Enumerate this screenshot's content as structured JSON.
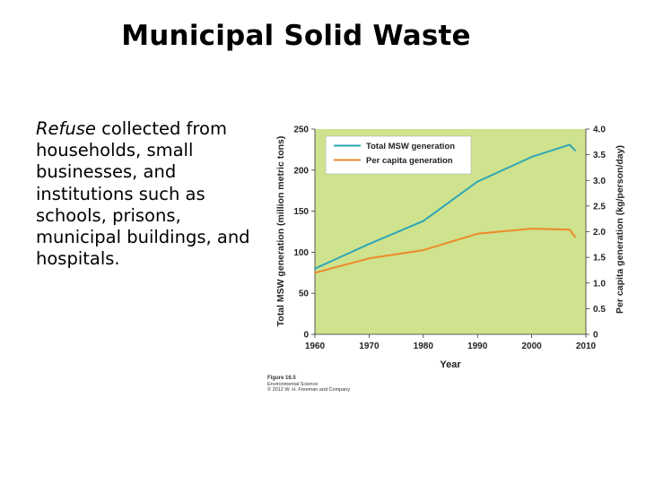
{
  "slide": {
    "title": "Municipal Solid Waste",
    "body_em": "Refuse",
    "body_rest": " collected from households, small businesses, and institutions such as schools, prisons, municipal buildings, and hospitals."
  },
  "caption": {
    "figure": "Figure 16.5",
    "book": "Environmental Science",
    "copyright": "© 2012 W. H. Freeman and Company"
  },
  "colors": {
    "plot_bg": "#cfe28e",
    "total_line": "#2ea6b6",
    "per_capita_line": "#ef8a2a"
  },
  "chart_data": {
    "type": "line",
    "title": "",
    "xlabel": "Year",
    "ylabel": "Total MSW generation (million metric tons)",
    "y2label": "Per capita generation (kg/person/day)",
    "xlim": [
      1960,
      2010
    ],
    "ylim": [
      0,
      250
    ],
    "y2lim": [
      0,
      4.0
    ],
    "x_ticks": [
      "1960",
      "1970",
      "1980",
      "1990",
      "2000",
      "2010"
    ],
    "y_ticks": [
      "0",
      "50",
      "100",
      "150",
      "200",
      "250"
    ],
    "y2_ticks": [
      "0",
      "0.5",
      "1.0",
      "1.5",
      "2.0",
      "2.5",
      "3.0",
      "3.5",
      "4.0"
    ],
    "legend_position": "top-left",
    "grid": false,
    "series": [
      {
        "name": "Total MSW generation",
        "axis": "left",
        "x": [
          1960,
          1970,
          1980,
          1990,
          2000,
          2007,
          2008
        ],
        "values": [
          80,
          110,
          138,
          186,
          216,
          231,
          224
        ]
      },
      {
        "name": "Per capita generation",
        "axis": "right",
        "x": [
          1960,
          1970,
          1980,
          1990,
          2000,
          2007,
          2008
        ],
        "values": [
          1.2,
          1.48,
          1.64,
          1.96,
          2.06,
          2.04,
          1.9
        ]
      }
    ]
  }
}
